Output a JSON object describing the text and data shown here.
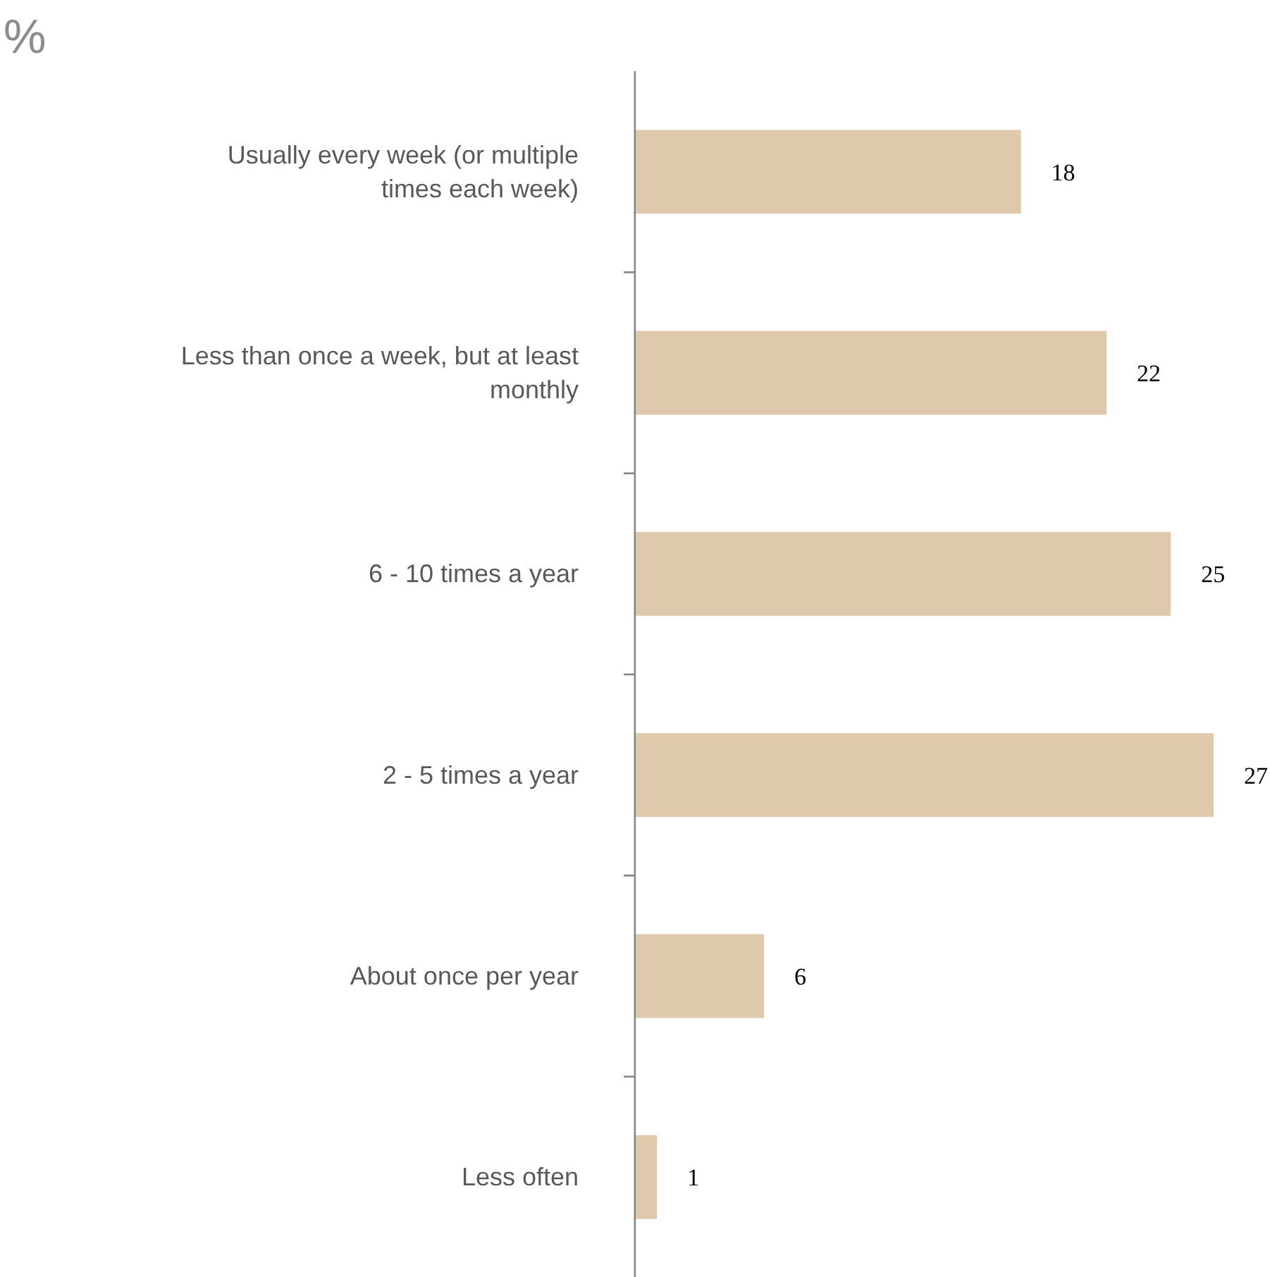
{
  "chart_data": {
    "type": "bar",
    "orientation": "horizontal",
    "title": "%",
    "categories": [
      "Usually every week (or multiple\ntimes each week)",
      "Less than once a week, but at least\nmonthly",
      "6 - 10 times a year",
      "2 - 5 times a year",
      "About once per year",
      "Less often"
    ],
    "values": [
      18,
      22,
      25,
      27,
      6,
      1
    ],
    "color": "#dfc9ad",
    "data_labels": true,
    "grid": false
  }
}
